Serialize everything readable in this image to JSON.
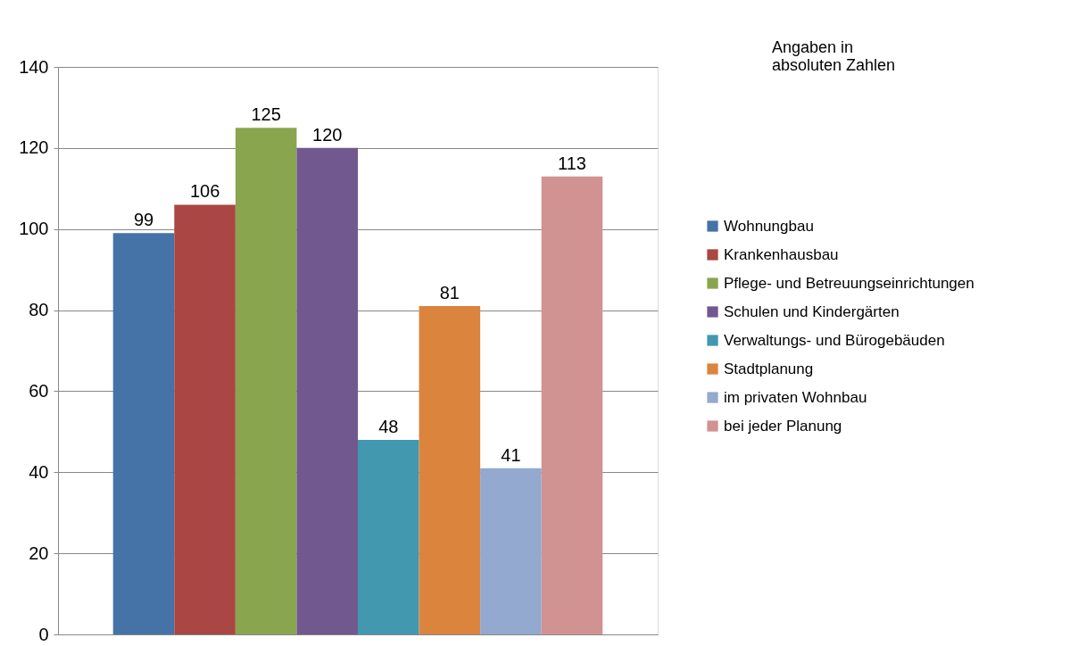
{
  "chart_data": {
    "type": "bar",
    "categories": [
      null
    ],
    "series": [
      {
        "name": "Wohnungbau",
        "color": "#4572a7",
        "values": [
          99
        ]
      },
      {
        "name": "Krankenhausbau",
        "color": "#aa4643",
        "values": [
          106
        ]
      },
      {
        "name": "Pflege- und Betreuungseinrichtungen",
        "color": "#89a54e",
        "values": [
          125
        ]
      },
      {
        "name": "Schulen und Kindergärten",
        "color": "#71588f",
        "values": [
          120
        ]
      },
      {
        "name": "Verwaltungs- und Bürogebäuden",
        "color": "#4198af",
        "values": [
          48
        ]
      },
      {
        "name": "Stadtplanung",
        "color": "#db843d",
        "values": [
          81
        ]
      },
      {
        "name": "im privaten Wohnbau",
        "color": "#93a9cf",
        "values": [
          41
        ]
      },
      {
        "name": "bei jeder Planung",
        "color": "#d19392",
        "values": [
          113
        ]
      }
    ],
    "ylim": [
      0,
      140
    ],
    "yticks": [
      0,
      20,
      40,
      60,
      80,
      100,
      120,
      140
    ],
    "grid": "y",
    "legend": "right",
    "data_labels": true,
    "annotations": [
      "Angaben in absoluten Zahlen"
    ]
  }
}
